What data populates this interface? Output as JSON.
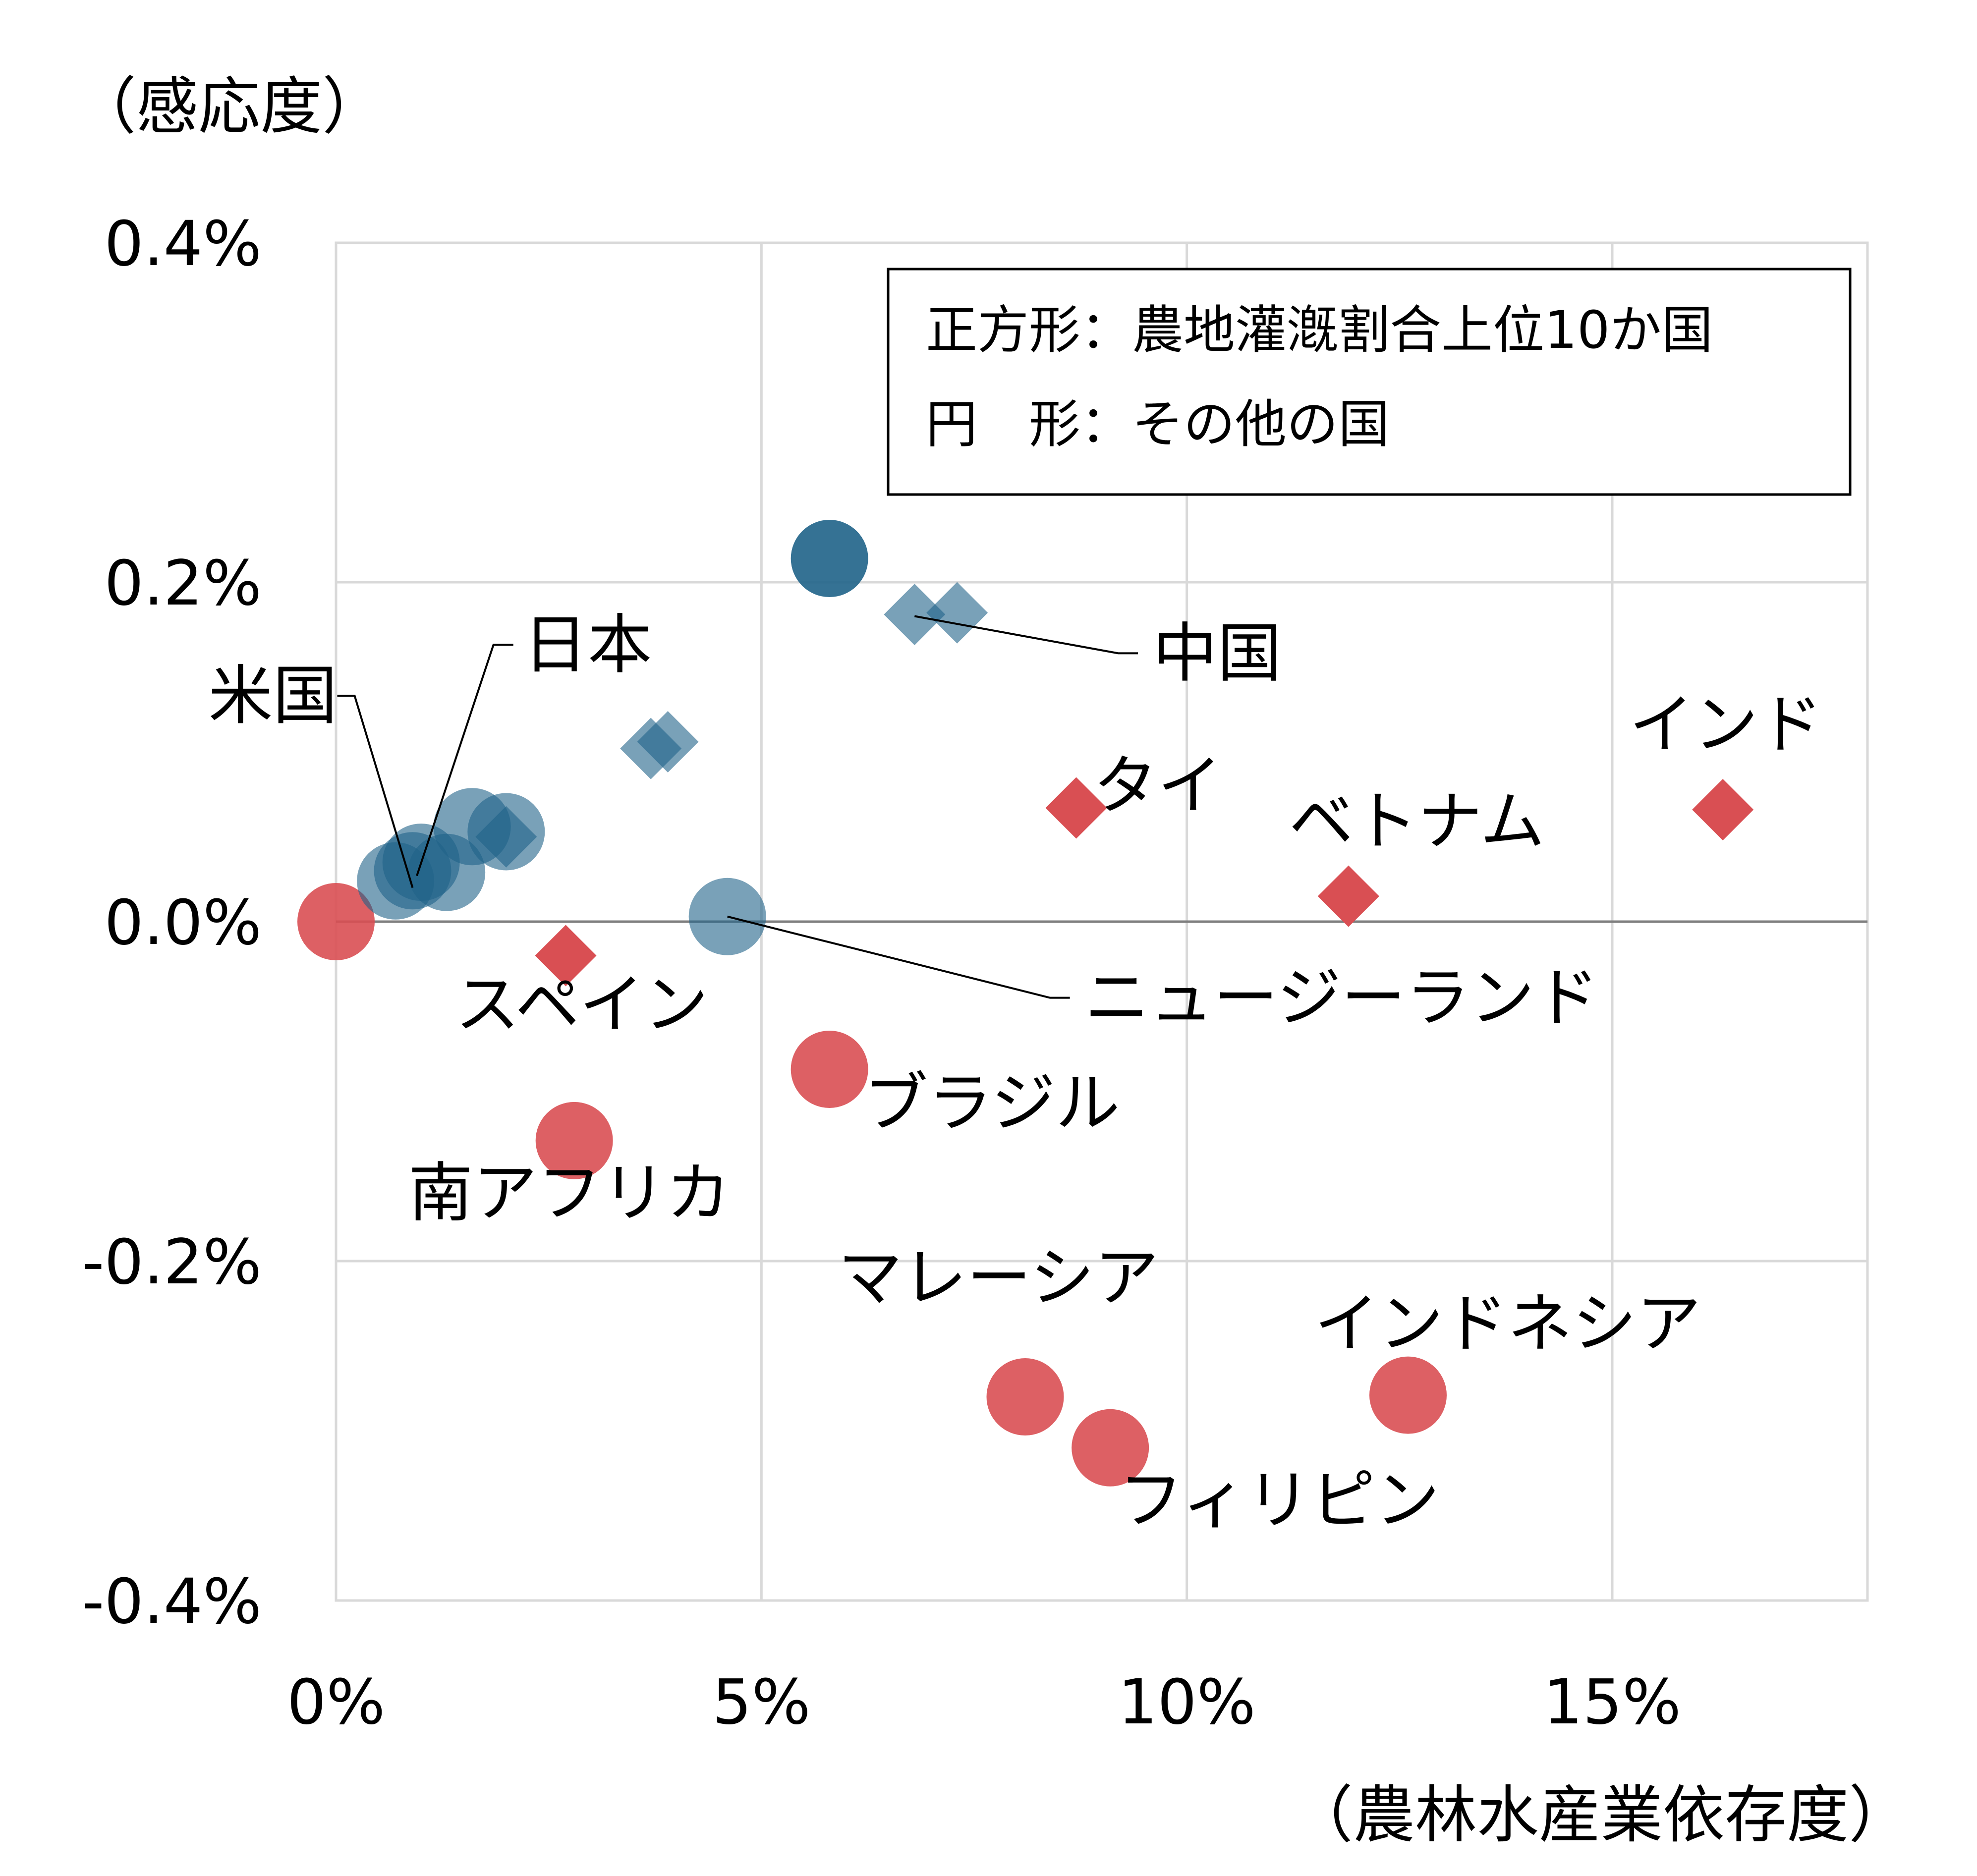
{
  "chart_data": {
    "type": "scatter",
    "xlabel": "（農林水産業依存度）",
    "ylabel": "（感応度）",
    "xlim": [
      0,
      18
    ],
    "ylim": [
      -0.4,
      0.4
    ],
    "x_ticks": [
      {
        "value": 0,
        "label": "0%"
      },
      {
        "value": 5,
        "label": "5%"
      },
      {
        "value": 10,
        "label": "10%"
      },
      {
        "value": 15,
        "label": "15%"
      }
    ],
    "y_ticks": [
      {
        "value": 0.4,
        "label": "0.4%",
        "color": "#000000"
      },
      {
        "value": 0.2,
        "label": "0.2%",
        "color": "#000000"
      },
      {
        "value": 0.0,
        "label": "0.0%",
        "color": "#000000"
      },
      {
        "value": -0.2,
        "label": "-0.2%",
        "color": "#ff0000"
      },
      {
        "value": -0.4,
        "label": "-0.4%",
        "color": "#ff0000"
      }
    ],
    "grid": true,
    "zero_line": true,
    "legend": {
      "placement": "top-right",
      "lines": [
        "正方形：農地灌漑割合上位10か国",
        "円　形：その他の国"
      ]
    },
    "colors": {
      "positive": "#1f6388",
      "negative": "#d94f53"
    },
    "points": [
      {
        "x": 0.0,
        "y": 0.0,
        "shape": "circle",
        "group": "negative",
        "opacity": 0.9
      },
      {
        "x": 2.7,
        "y": -0.02,
        "shape": "diamond",
        "group": "negative",
        "opacity": 1.0
      },
      {
        "x": 2.8,
        "y": -0.129,
        "shape": "circle",
        "group": "negative",
        "opacity": 0.9
      },
      {
        "x": 5.8,
        "y": -0.087,
        "shape": "circle",
        "group": "negative",
        "opacity": 0.9
      },
      {
        "x": 8.7,
        "y": 0.067,
        "shape": "diamond",
        "group": "negative",
        "opacity": 1.0
      },
      {
        "x": 11.9,
        "y": 0.015,
        "shape": "diamond",
        "group": "negative",
        "opacity": 1.0
      },
      {
        "x": 16.3,
        "y": 0.066,
        "shape": "diamond",
        "group": "negative",
        "opacity": 1.0
      },
      {
        "x": 8.1,
        "y": -0.28,
        "shape": "circle",
        "group": "negative",
        "opacity": 0.9
      },
      {
        "x": 9.1,
        "y": -0.31,
        "shape": "circle",
        "group": "negative",
        "opacity": 0.9
      },
      {
        "x": 12.6,
        "y": -0.279,
        "shape": "circle",
        "group": "negative",
        "opacity": 0.9
      },
      {
        "x": 5.8,
        "y": 0.214,
        "shape": "circle",
        "group": "positive",
        "opacity": 0.9
      },
      {
        "x": 6.8,
        "y": 0.181,
        "shape": "diamond",
        "group": "positive",
        "opacity": 0.6
      },
      {
        "x": 7.3,
        "y": 0.182,
        "shape": "diamond",
        "group": "positive",
        "opacity": 0.6
      },
      {
        "x": 3.7,
        "y": 0.102,
        "shape": "diamond",
        "group": "positive",
        "opacity": 0.6
      },
      {
        "x": 3.9,
        "y": 0.106,
        "shape": "diamond",
        "group": "positive",
        "opacity": 0.6
      },
      {
        "x": 4.6,
        "y": 0.003,
        "shape": "circle",
        "group": "positive",
        "opacity": 0.6
      },
      {
        "x": 0.7,
        "y": 0.024,
        "shape": "circle",
        "group": "positive",
        "opacity": 0.6
      },
      {
        "x": 0.9,
        "y": 0.03,
        "shape": "circle",
        "group": "positive",
        "opacity": 0.6
      },
      {
        "x": 1.0,
        "y": 0.035,
        "shape": "circle",
        "group": "positive",
        "opacity": 0.6
      },
      {
        "x": 1.3,
        "y": 0.029,
        "shape": "circle",
        "group": "positive",
        "opacity": 0.6
      },
      {
        "x": 1.6,
        "y": 0.056,
        "shape": "circle",
        "group": "positive",
        "opacity": 0.6
      },
      {
        "x": 2.0,
        "y": 0.05,
        "shape": "diamond",
        "group": "positive",
        "opacity": 0.6
      },
      {
        "x": 2.0,
        "y": 0.053,
        "shape": "circle",
        "group": "positive",
        "opacity": 0.6
      }
    ],
    "labels": [
      {
        "text": "日本",
        "x": 2.2,
        "y": 0.15,
        "anchor_x": 0.95,
        "anchor_y": 0.027
      },
      {
        "text": "米国",
        "x": -1.5,
        "y": 0.12,
        "anchor_x": 0.9,
        "anchor_y": 0.02
      },
      {
        "text": "中国",
        "x": 9.6,
        "y": 0.145,
        "anchor_x": 6.8,
        "anchor_y": 0.18
      },
      {
        "text": "インド",
        "x": 15.2,
        "y": 0.103
      },
      {
        "text": "タイ",
        "x": 8.9,
        "y": 0.067
      },
      {
        "text": "ベトナム",
        "x": 11.2,
        "y": 0.046
      },
      {
        "text": "スペイン",
        "x": 1.4,
        "y": -0.062
      },
      {
        "text": "ニュージーランド",
        "x": 8.8,
        "y": -0.058,
        "anchor_x": 4.6,
        "anchor_y": 0.003
      },
      {
        "text": "ブラジル",
        "x": 6.2,
        "y": -0.12
      },
      {
        "text": "南アフリカ",
        "x": 0.85,
        "y": -0.173
      },
      {
        "text": "マレーシア",
        "x": 5.9,
        "y": -0.223
      },
      {
        "text": "インドネシア",
        "x": 11.5,
        "y": -0.25
      },
      {
        "text": "フィリピン",
        "x": 9.2,
        "y": -0.354
      }
    ]
  }
}
